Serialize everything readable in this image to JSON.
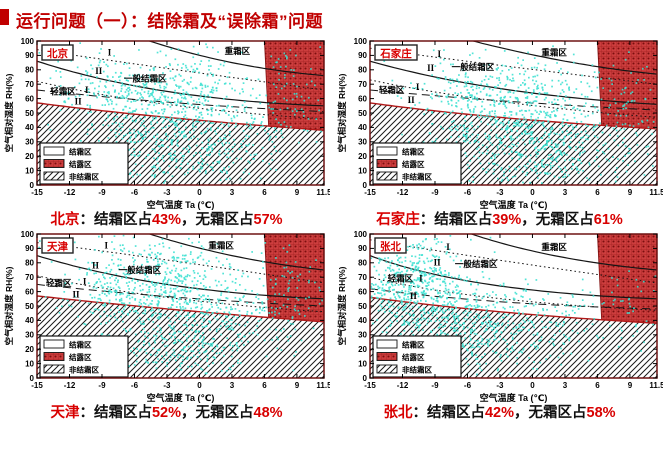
{
  "title": {
    "text": "运行问题（一）：结除霜及“误除霜”问题",
    "color": "#c00000"
  },
  "colors": {
    "point": "#3ce0d2",
    "frame": "#6f1212",
    "boundary": "#b01818",
    "curve": "#151515",
    "hatch_line": "#1a1a1a",
    "dew_bg": "#cc3d3d",
    "dew_dot": "#7c0e0e",
    "city_text": "#d80000",
    "caption_red": "#d80000"
  },
  "chart_common": {
    "xlabel": "空气温度 Ta (℃)",
    "ylabel": "空气相对湿度 RH(%)",
    "xlim": [
      -15,
      11.5
    ],
    "ylim": [
      0,
      100
    ],
    "x_ticks": [
      -15,
      -12,
      -9,
      -6,
      -3,
      0,
      3,
      6,
      9,
      11.5
    ],
    "y_ticks": [
      0,
      10,
      20,
      30,
      40,
      50,
      60,
      70,
      80,
      90,
      100
    ],
    "legend": [
      {
        "label": "结霜区",
        "swatch": "blank"
      },
      {
        "label": "结露区",
        "swatch": "dew"
      },
      {
        "label": "非结霜区",
        "swatch": "diag"
      }
    ],
    "dew_x_start": 6
  },
  "chart_data": [
    {
      "type": "scatter",
      "id": "beijing",
      "city_label": "北京",
      "caption": {
        "city": "北京",
        "seg1": "：结霜区占",
        "v1": "43%",
        "seg2": "，无霜区占",
        "v2": "57%"
      },
      "frost_boundary": [
        [
          -15,
          57
        ],
        [
          -3,
          47
        ],
        [
          11.5,
          38
        ]
      ],
      "curves": [
        {
          "style": "dotted",
          "pts": [
            [
              -15,
              94
            ],
            [
              -4,
              82
            ],
            [
              11.5,
              66
            ]
          ]
        },
        {
          "style": "solid",
          "pts": [
            [
              -5,
              101
            ],
            [
              3,
              85
            ],
            [
              11.5,
              76
            ]
          ]
        },
        {
          "style": "solid",
          "pts": [
            [
              -15,
              86
            ],
            [
              -3,
              65
            ],
            [
              11.5,
              55
            ]
          ]
        },
        {
          "style": "dotted",
          "pts": [
            [
              -15,
              72
            ],
            [
              -3,
              56
            ],
            [
              11.5,
              46
            ]
          ]
        },
        {
          "style": "dashed",
          "pts": [
            [
              -15,
              66
            ],
            [
              -2,
              57
            ],
            [
              11.5,
              51
            ]
          ]
        }
      ],
      "zone_labels": [
        {
          "text": "I",
          "x": -8.3,
          "y": 90,
          "roman": true
        },
        {
          "text": "II",
          "x": -9.3,
          "y": 77,
          "roman": true
        },
        {
          "text": "一般结霜区",
          "x": -5,
          "y": 72
        },
        {
          "text": "轻霜区",
          "x": -12.6,
          "y": 63
        },
        {
          "text": "I",
          "x": -10.4,
          "y": 64,
          "roman": true
        },
        {
          "text": "II",
          "x": -11.2,
          "y": 56,
          "roman": true
        },
        {
          "text": "重霜区",
          "x": 3.5,
          "y": 91
        }
      ],
      "scatter": {
        "seed": 7,
        "clusters": [
          {
            "cx": -4,
            "cy": 68,
            "sx": 4.2,
            "sy": 13,
            "n": 420
          },
          {
            "cx": -1.5,
            "cy": 38,
            "sx": 4.8,
            "sy": 14,
            "n": 470
          },
          {
            "cx": -3,
            "cy": 15,
            "sx": 4.2,
            "sy": 8,
            "n": 120
          },
          {
            "cx": 8.3,
            "cy": 62,
            "sx": 1.6,
            "sy": 18,
            "n": 70
          }
        ]
      }
    },
    {
      "type": "scatter",
      "id": "shijiazhuang",
      "city_label": "石家庄",
      "caption": {
        "city": "石家庄",
        "seg1": "：结霜区占",
        "v1": "39%",
        "seg2": "，无霜区占",
        "v2": "61%"
      },
      "frost_boundary": [
        [
          -15,
          57
        ],
        [
          -3,
          47
        ],
        [
          11.5,
          39
        ]
      ],
      "curves": [
        {
          "style": "dotted",
          "pts": [
            [
              -15,
              95
            ],
            [
              -4,
              84
            ],
            [
              11.5,
              70
            ]
          ]
        },
        {
          "style": "solid",
          "pts": [
            [
              -6,
              101
            ],
            [
              3,
              86
            ],
            [
              11.5,
              77
            ]
          ]
        },
        {
          "style": "solid",
          "pts": [
            [
              -15,
              86
            ],
            [
              -3,
              67
            ],
            [
              11.5,
              56
            ]
          ]
        },
        {
          "style": "dotted",
          "pts": [
            [
              -15,
              73
            ],
            [
              -3,
              58
            ],
            [
              11.5,
              47
            ]
          ]
        },
        {
          "style": "dashed",
          "pts": [
            [
              -15,
              66
            ],
            [
              -2,
              58
            ],
            [
              11.5,
              52
            ]
          ]
        }
      ],
      "zone_labels": [
        {
          "text": "I",
          "x": -8.6,
          "y": 89,
          "roman": true
        },
        {
          "text": "II",
          "x": -9.4,
          "y": 79,
          "roman": true
        },
        {
          "text": "一般结霜区",
          "x": -5.5,
          "y": 80
        },
        {
          "text": "轻霜区",
          "x": -13,
          "y": 64
        },
        {
          "text": "I",
          "x": -10.6,
          "y": 66,
          "roman": true
        },
        {
          "text": "II",
          "x": -11.2,
          "y": 57,
          "roman": true
        },
        {
          "text": "重霜区",
          "x": 2,
          "y": 90
        }
      ],
      "scatter": {
        "seed": 11,
        "clusters": [
          {
            "cx": -3,
            "cy": 62,
            "sx": 4.0,
            "sy": 14,
            "n": 430
          },
          {
            "cx": 0,
            "cy": 33,
            "sx": 4.5,
            "sy": 13,
            "n": 460
          },
          {
            "cx": 1,
            "cy": 13,
            "sx": 4,
            "sy": 6,
            "n": 90
          },
          {
            "cx": 8.6,
            "cy": 58,
            "sx": 1.6,
            "sy": 16,
            "n": 60
          }
        ]
      }
    },
    {
      "type": "scatter",
      "id": "tianjin",
      "city_label": "天津",
      "caption": {
        "city": "天津",
        "seg1": "：结霜区占",
        "v1": "52%",
        "seg2": "，无霜区占",
        "v2": "48%"
      },
      "frost_boundary": [
        [
          -15,
          57
        ],
        [
          -3,
          48
        ],
        [
          11.5,
          39
        ]
      ],
      "curves": [
        {
          "style": "dotted",
          "pts": [
            [
              -15,
              94
            ],
            [
              -4,
              83
            ],
            [
              11.5,
              66
            ]
          ]
        },
        {
          "style": "solid",
          "pts": [
            [
              -5,
              101
            ],
            [
              3,
              85
            ],
            [
              11.5,
              75
            ]
          ]
        },
        {
          "style": "solid",
          "pts": [
            [
              -15,
              85
            ],
            [
              -3,
              65
            ],
            [
              11.5,
              55
            ]
          ]
        },
        {
          "style": "dotted",
          "pts": [
            [
              -15,
              71
            ],
            [
              -3,
              56
            ],
            [
              11.5,
              46
            ]
          ]
        },
        {
          "style": "dashed",
          "pts": [
            [
              -15,
              65
            ],
            [
              -2,
              56
            ],
            [
              11.5,
              50
            ]
          ]
        }
      ],
      "zone_labels": [
        {
          "text": "I",
          "x": -8.6,
          "y": 90,
          "roman": true
        },
        {
          "text": "II",
          "x": -9.6,
          "y": 76,
          "roman": true
        },
        {
          "text": "一般结霜区",
          "x": -5.5,
          "y": 73
        },
        {
          "text": "轻霜区",
          "x": -13,
          "y": 64
        },
        {
          "text": "I",
          "x": -10.6,
          "y": 65,
          "roman": true
        },
        {
          "text": "II",
          "x": -11.4,
          "y": 56,
          "roman": true
        },
        {
          "text": "重霜区",
          "x": 2,
          "y": 90
        }
      ],
      "scatter": {
        "seed": 13,
        "clusters": [
          {
            "cx": -5,
            "cy": 70,
            "sx": 4.2,
            "sy": 13,
            "n": 430
          },
          {
            "cx": -1,
            "cy": 40,
            "sx": 5,
            "sy": 14,
            "n": 460
          },
          {
            "cx": -2,
            "cy": 15,
            "sx": 4.5,
            "sy": 8,
            "n": 130
          },
          {
            "cx": 8.4,
            "cy": 60,
            "sx": 1.7,
            "sy": 19,
            "n": 80
          }
        ]
      }
    },
    {
      "type": "scatter",
      "id": "zhangbei",
      "city_label": "张北",
      "caption": {
        "city": "张北",
        "seg1": "：结霜区占",
        "v1": "42%",
        "seg2": "，无霜区占",
        "v2": "58%"
      },
      "frost_boundary": [
        [
          -15,
          56
        ],
        [
          -3,
          46
        ],
        [
          11.5,
          38
        ]
      ],
      "curves": [
        {
          "style": "dotted",
          "pts": [
            [
              -15,
              96
            ],
            [
              -5,
              84
            ],
            [
              11.5,
              66
            ]
          ]
        },
        {
          "style": "solid",
          "pts": [
            [
              -6,
              101
            ],
            [
              2,
              85
            ],
            [
              11.5,
              75
            ]
          ]
        },
        {
          "style": "solid",
          "pts": [
            [
              -15,
              85
            ],
            [
              -4,
              65
            ],
            [
              11.5,
              55
            ]
          ]
        },
        {
          "style": "dotted",
          "pts": [
            [
              -15,
              70
            ],
            [
              -4,
              56
            ],
            [
              11.5,
              47
            ]
          ]
        },
        {
          "style": "dashed",
          "pts": [
            [
              -15,
              62
            ],
            [
              -3,
              53
            ],
            [
              11.5,
              48
            ]
          ]
        }
      ],
      "zone_labels": [
        {
          "text": "I",
          "x": -7.8,
          "y": 89,
          "roman": true
        },
        {
          "text": "II",
          "x": -8.8,
          "y": 78,
          "roman": true
        },
        {
          "text": "一般结霜区",
          "x": -5.2,
          "y": 77
        },
        {
          "text": "轻霜区",
          "x": -12.2,
          "y": 67
        },
        {
          "text": "I",
          "x": -10.3,
          "y": 67,
          "roman": true
        },
        {
          "text": "II",
          "x": -11,
          "y": 55,
          "roman": true
        },
        {
          "text": "重霜区",
          "x": 2,
          "y": 89
        }
      ],
      "scatter": {
        "seed": 17,
        "clusters": [
          {
            "cx": -11.5,
            "cy": 68,
            "sx": 3,
            "sy": 14,
            "n": 500
          },
          {
            "cx": -8,
            "cy": 40,
            "sx": 4,
            "sy": 12,
            "n": 340
          },
          {
            "cx": -4,
            "cy": 25,
            "sx": 4.5,
            "sy": 10,
            "n": 220
          },
          {
            "cx": 2,
            "cy": 45,
            "sx": 3,
            "sy": 12,
            "n": 80
          },
          {
            "cx": 9,
            "cy": 50,
            "sx": 1.5,
            "sy": 15,
            "n": 40
          }
        ]
      }
    }
  ]
}
